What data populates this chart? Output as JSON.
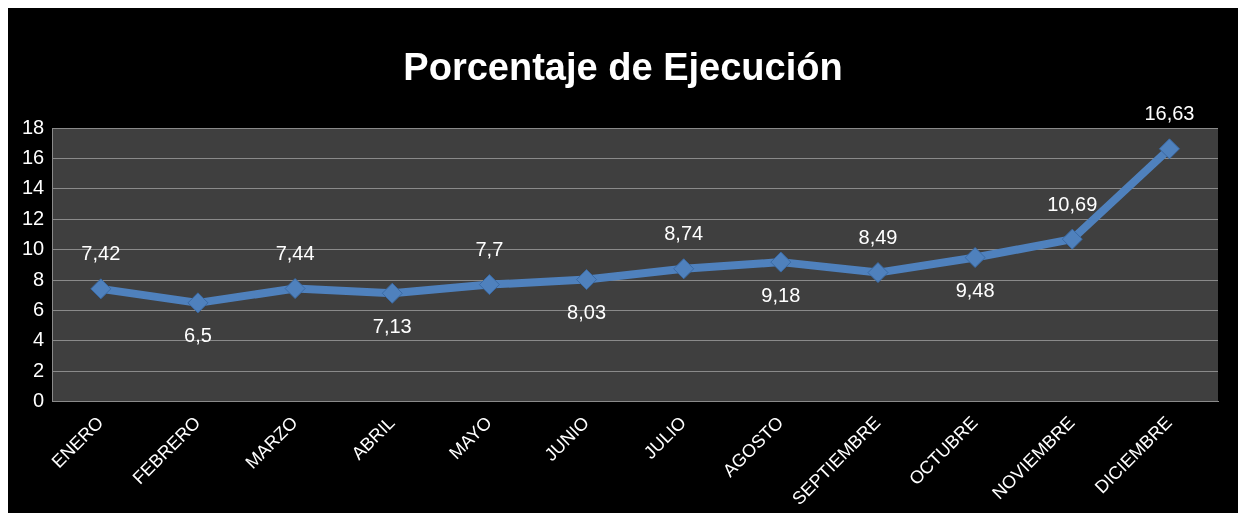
{
  "chart_data": {
    "type": "line",
    "title": "Porcentaje de Ejecución",
    "categories": [
      "ENERO",
      "FEBRERO",
      "MARZO",
      "ABRIL",
      "MAYO",
      "JUNIO",
      "JULIO",
      "AGOSTO",
      "SEPTIEMBRE",
      "OCTUBRE",
      "NOVIEMBRE",
      "DICIEMBRE"
    ],
    "series": [
      {
        "color": "#4f81bd",
        "values": [
          7.42,
          6.5,
          7.44,
          7.13,
          7.7,
          8.03,
          8.74,
          9.18,
          8.49,
          9.48,
          10.69,
          16.63
        ],
        "value_labels": [
          "7,42",
          "6,5",
          "7,44",
          "7,13",
          "7,7",
          "8,03",
          "8,74",
          "9,18",
          "8,49",
          "9,48",
          "10,69",
          "16,63"
        ]
      }
    ],
    "ylim": [
      0,
      18
    ],
    "yticks": [
      0,
      2,
      4,
      6,
      8,
      10,
      12,
      14,
      16,
      18
    ],
    "grid": "y",
    "legend": false,
    "marker": "diamond",
    "line_style": "solid"
  }
}
